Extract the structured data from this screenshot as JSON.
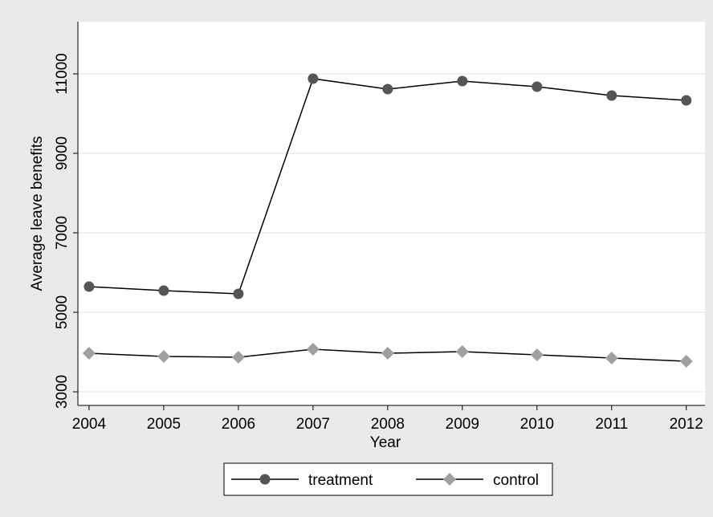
{
  "chart_data": {
    "type": "line",
    "x_label": "Year",
    "y_label": "Average leave benefits",
    "x": [
      2004,
      2005,
      2006,
      2007,
      2008,
      2009,
      2010,
      2011,
      2012
    ],
    "series": [
      {
        "name": "treatment",
        "color": "#555555",
        "marker": "circle",
        "values": [
          5646,
          5545,
          5465,
          10879,
          10616,
          10818,
          10677,
          10455,
          10333
        ]
      },
      {
        "name": "control",
        "color": "#a0a0a0",
        "marker": "diamond",
        "values": [
          3970,
          3889,
          3869,
          4071,
          3970,
          4010,
          3929,
          3848,
          3768
        ]
      }
    ],
    "line_color": "#000000",
    "xlim": [
      2003.85,
      2012.25
    ],
    "xticks": [
      2004,
      2005,
      2006,
      2007,
      2008,
      2009,
      2010,
      2011,
      2012
    ],
    "ylim": [
      2657,
      12313
    ],
    "yticks": [
      3000,
      5000,
      7000,
      9000,
      11000
    ],
    "grid": true,
    "legend": "bottom"
  }
}
